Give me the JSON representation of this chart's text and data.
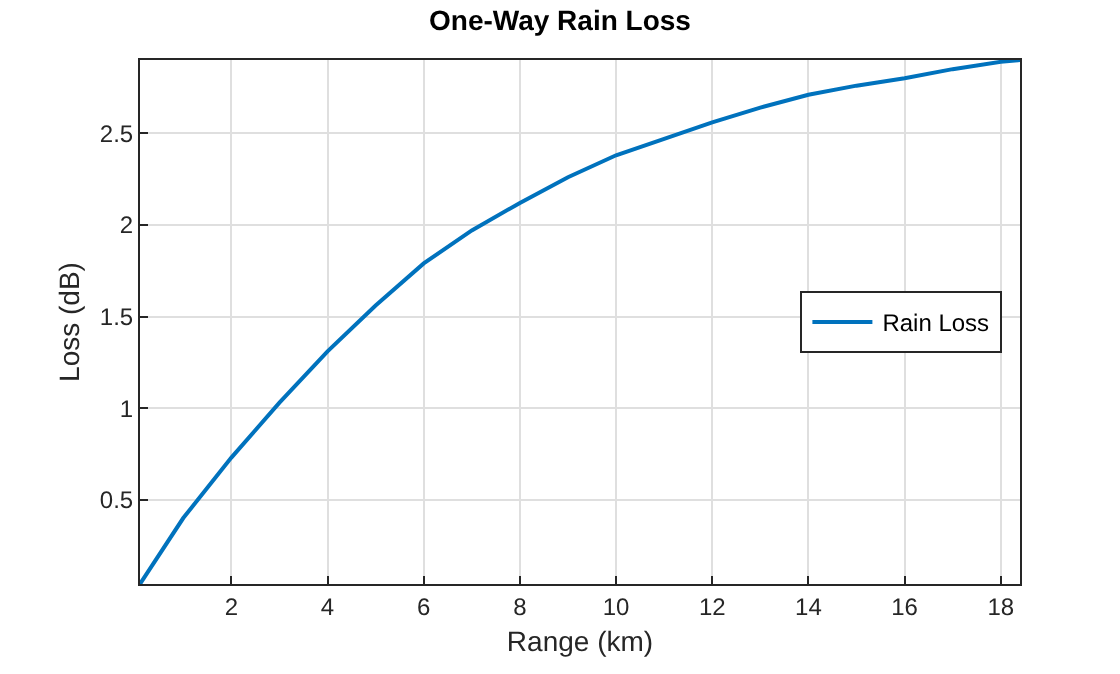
{
  "chart_data": {
    "type": "line",
    "title": "One-Way Rain Loss",
    "xlabel": "Range (km)",
    "ylabel": "Loss (dB)",
    "x": [
      0.1,
      1,
      2,
      3,
      4,
      5,
      6,
      7,
      8,
      9,
      10,
      11,
      12,
      13,
      14,
      15,
      16,
      17,
      18,
      18.4
    ],
    "series": [
      {
        "name": "Rain Loss",
        "color": "#0072bd",
        "values": [
          0.04,
          0.4,
          0.73,
          1.03,
          1.31,
          1.56,
          1.79,
          1.97,
          2.12,
          2.26,
          2.38,
          2.47,
          2.56,
          2.64,
          2.71,
          2.76,
          2.8,
          2.85,
          2.89,
          2.9
        ]
      }
    ],
    "xlim": [
      0.1,
      18.4
    ],
    "xticks": [
      2,
      4,
      6,
      8,
      10,
      12,
      14,
      16,
      18
    ],
    "ylim": [
      0.04,
      2.9
    ],
    "yticks": [
      0.5,
      1,
      1.5,
      2,
      2.5
    ],
    "grid": true,
    "legend": "right",
    "marker": "none",
    "line_style": "solid"
  }
}
